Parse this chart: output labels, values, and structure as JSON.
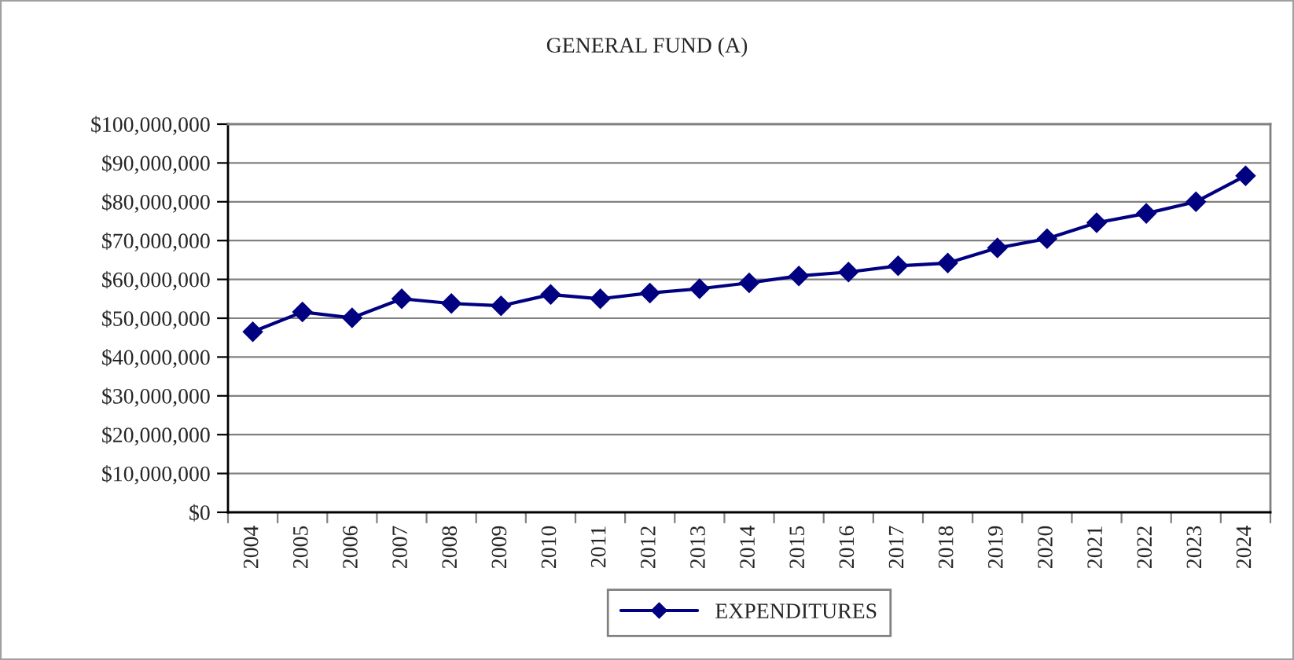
{
  "chart_data": {
    "type": "line",
    "title": "GENERAL FUND (A)",
    "categories": [
      "2004",
      "2005",
      "2006",
      "2007",
      "2008",
      "2009",
      "2010",
      "2011",
      "2012",
      "2013",
      "2014",
      "2015",
      "2016",
      "2017",
      "2018",
      "2019",
      "2020",
      "2021",
      "2022",
      "2023",
      "2024"
    ],
    "series": [
      {
        "name": "EXPENDITURES",
        "color": "#000080",
        "values": [
          46500000,
          51600000,
          50100000,
          55000000,
          53800000,
          53200000,
          56100000,
          55000000,
          56500000,
          57600000,
          59100000,
          60900000,
          61900000,
          63500000,
          64200000,
          68100000,
          70500000,
          74600000,
          77000000,
          80000000,
          86700000
        ]
      }
    ],
    "ylim": [
      0,
      100000000
    ],
    "yticks": [
      {
        "value": 0,
        "label": "$0"
      },
      {
        "value": 10000000,
        "label": "$10,000,000"
      },
      {
        "value": 20000000,
        "label": "$20,000,000"
      },
      {
        "value": 30000000,
        "label": "$30,000,000"
      },
      {
        "value": 40000000,
        "label": "$40,000,000"
      },
      {
        "value": 50000000,
        "label": "$50,000,000"
      },
      {
        "value": 60000000,
        "label": "$60,000,000"
      },
      {
        "value": 70000000,
        "label": "$70,000,000"
      },
      {
        "value": 80000000,
        "label": "$80,000,000"
      },
      {
        "value": 90000000,
        "label": "$90,000,000"
      },
      {
        "value": 100000000,
        "label": "$100,000,000"
      }
    ],
    "grid": "y",
    "legend": "bottom",
    "marker": "diamond",
    "line_style": "solid"
  }
}
